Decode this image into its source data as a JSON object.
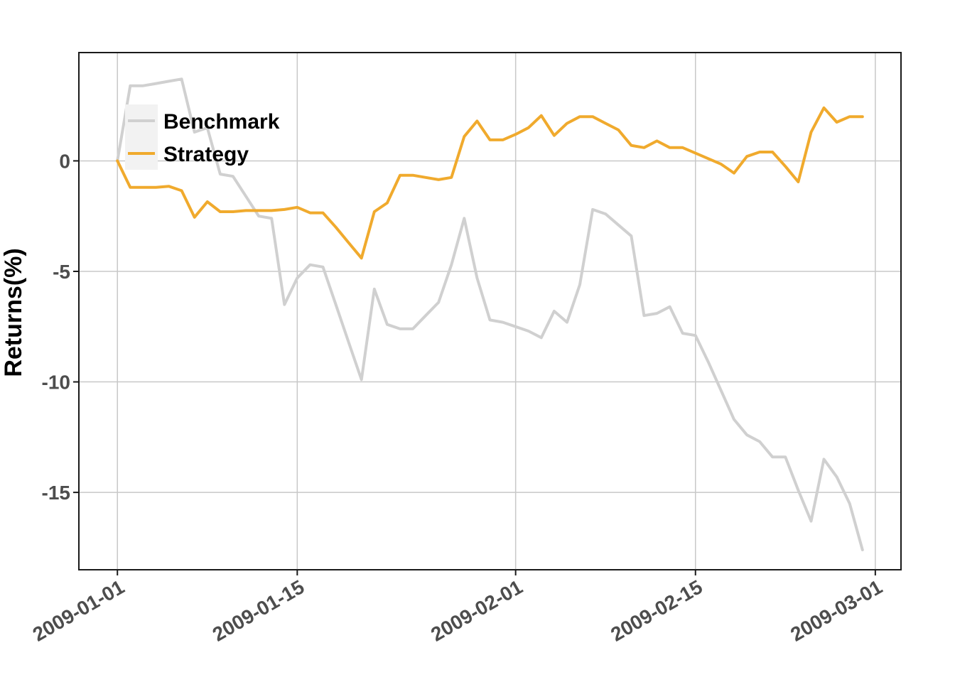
{
  "chart_data": {
    "type": "line",
    "title": "",
    "xlabel": "",
    "ylabel": "Returns(%)",
    "xlim": [
      "2008-12-29",
      "2009-03-03"
    ],
    "ylim": [
      -18.5,
      4.9
    ],
    "grid": true,
    "legend_position": "top-left",
    "x_ticks": [
      "2009-01-01",
      "2009-01-15",
      "2009-02-01",
      "2009-02-15",
      "2009-03-01"
    ],
    "y_ticks": [
      0,
      -5,
      -10,
      -15
    ],
    "y_tick_labels": [
      "0",
      "-5",
      "-10",
      "-15"
    ],
    "series": [
      {
        "name": "Benchmark",
        "color": "#d0d0d0",
        "x": [
          "2009-01-01",
          "2009-01-02",
          "2009-01-03",
          "2009-01-04",
          "2009-01-05",
          "2009-01-06",
          "2009-01-07",
          "2009-01-08",
          "2009-01-09",
          "2009-01-10",
          "2009-01-11",
          "2009-01-12",
          "2009-01-13",
          "2009-01-14",
          "2009-01-15",
          "2009-01-16",
          "2009-01-17",
          "2009-01-18",
          "2009-01-19",
          "2009-01-20",
          "2009-01-21",
          "2009-01-22",
          "2009-01-23",
          "2009-01-24",
          "2009-01-25",
          "2009-01-26",
          "2009-01-27",
          "2009-01-28",
          "2009-01-29",
          "2009-01-30",
          "2009-01-31",
          "2009-02-01",
          "2009-02-02",
          "2009-02-03",
          "2009-02-04",
          "2009-02-05",
          "2009-02-06",
          "2009-02-07",
          "2009-02-08",
          "2009-02-09",
          "2009-02-10",
          "2009-02-11",
          "2009-02-12",
          "2009-02-13",
          "2009-02-14",
          "2009-02-15",
          "2009-02-16",
          "2009-02-17",
          "2009-02-18",
          "2009-02-19",
          "2009-02-20",
          "2009-02-21",
          "2009-02-22",
          "2009-02-23",
          "2009-02-24",
          "2009-02-25",
          "2009-02-26",
          "2009-02-27",
          "2009-02-28"
        ],
        "values": [
          0,
          3.4,
          3.4,
          3.5,
          3.6,
          3.7,
          1.3,
          1.5,
          -0.6,
          -0.7,
          -1.6,
          -2.5,
          -2.6,
          -6.5,
          -5.3,
          -4.7,
          -4.8,
          -6.5,
          -8.2,
          -9.9,
          -5.8,
          -7.4,
          -7.6,
          -7.6,
          -7.0,
          -6.4,
          -4.7,
          -2.6,
          -5.3,
          -7.2,
          -7.3,
          -7.5,
          -7.7,
          -8.0,
          -6.8,
          -7.3,
          -5.6,
          -2.2,
          -2.4,
          -2.9,
          -3.4,
          -7.0,
          -6.9,
          -6.6,
          -7.8,
          -7.9,
          -9.1,
          -10.4,
          -11.7,
          -12.4,
          -12.7,
          -13.4,
          -13.4,
          -14.9,
          -16.3,
          -13.5,
          -14.3,
          -15.5,
          -17.6
        ]
      },
      {
        "name": "Strategy",
        "color": "#f0aa2d",
        "x": [
          "2009-01-01",
          "2009-01-02",
          "2009-01-03",
          "2009-01-04",
          "2009-01-05",
          "2009-01-06",
          "2009-01-07",
          "2009-01-08",
          "2009-01-09",
          "2009-01-10",
          "2009-01-11",
          "2009-01-12",
          "2009-01-13",
          "2009-01-14",
          "2009-01-15",
          "2009-01-16",
          "2009-01-17",
          "2009-01-18",
          "2009-01-19",
          "2009-01-20",
          "2009-01-21",
          "2009-01-22",
          "2009-01-23",
          "2009-01-24",
          "2009-01-25",
          "2009-01-26",
          "2009-01-27",
          "2009-01-28",
          "2009-01-29",
          "2009-01-30",
          "2009-01-31",
          "2009-02-01",
          "2009-02-02",
          "2009-02-03",
          "2009-02-04",
          "2009-02-05",
          "2009-02-06",
          "2009-02-07",
          "2009-02-08",
          "2009-02-09",
          "2009-02-10",
          "2009-02-11",
          "2009-02-12",
          "2009-02-13",
          "2009-02-14",
          "2009-02-15",
          "2009-02-16",
          "2009-02-17",
          "2009-02-18",
          "2009-02-19",
          "2009-02-20",
          "2009-02-21",
          "2009-02-22",
          "2009-02-23",
          "2009-02-24",
          "2009-02-25",
          "2009-02-26",
          "2009-02-27",
          "2009-02-28"
        ],
        "values": [
          0,
          -1.2,
          -1.2,
          -1.2,
          -1.15,
          -1.35,
          -2.55,
          -1.85,
          -2.3,
          -2.3,
          -2.25,
          -2.25,
          -2.25,
          -2.2,
          -2.1,
          -2.35,
          -2.35,
          -3.0,
          -3.7,
          -4.4,
          -2.3,
          -1.9,
          -0.65,
          -0.65,
          -0.75,
          -0.85,
          -0.75,
          1.1,
          1.8,
          0.95,
          0.95,
          1.2,
          1.5,
          2.05,
          1.15,
          1.7,
          2.0,
          2.0,
          1.7,
          1.4,
          0.7,
          0.6,
          0.9,
          0.6,
          0.6,
          0.35,
          0.1,
          -0.15,
          -0.55,
          0.2,
          0.4,
          0.4,
          -0.25,
          -0.95,
          1.3,
          2.4,
          1.75,
          2.0,
          2.0
        ]
      }
    ]
  }
}
